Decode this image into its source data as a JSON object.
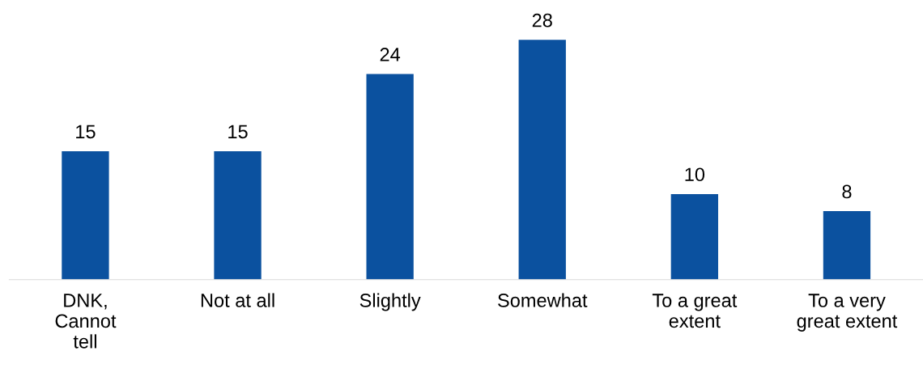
{
  "chart_data": {
    "type": "bar",
    "categories": [
      "DNK,\nCannot\ntell",
      "Not at all",
      "Slightly",
      "Somewhat",
      "To a great\nextent",
      "To a very\ngreat extent"
    ],
    "values": [
      15,
      15,
      24,
      28,
      10,
      8
    ],
    "color": "#0b519f",
    "data_labels": true,
    "grid": false,
    "legend": false
  }
}
